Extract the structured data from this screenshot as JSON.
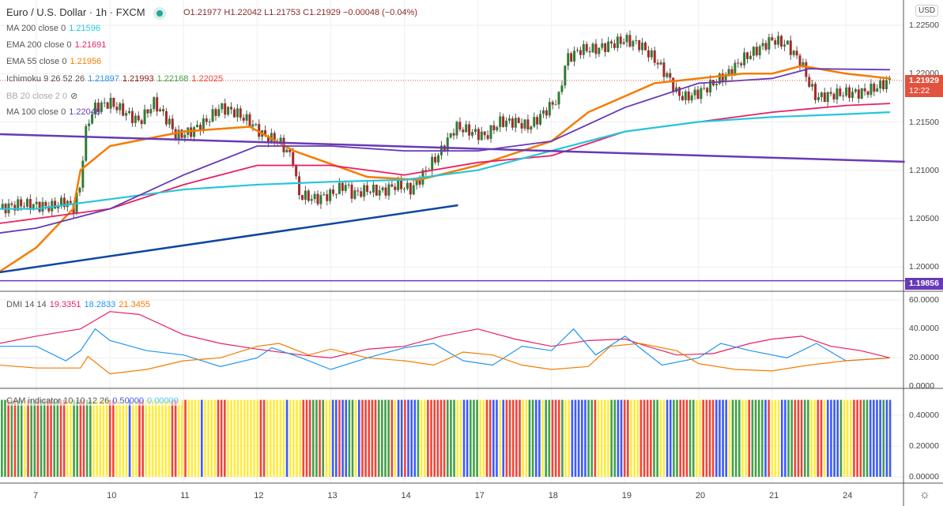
{
  "header": {
    "title": "Euro / U.S. Dollar · 1h · FXCM",
    "open": "O1.21977",
    "high": "H1.22042",
    "low": "L1.21753",
    "close": "C1.21929",
    "change": "−0.00048 (−0.04%)"
  },
  "legend": [
    {
      "label": "MA 200 close 0",
      "value": "1.21596",
      "color": "#26c6da"
    },
    {
      "label": "EMA 200 close 0",
      "value": "1.21691",
      "color": "#e91e63"
    },
    {
      "label": "EMA 55 close 0",
      "value": "1.21956",
      "color": "#f57c00"
    },
    {
      "label": "Ichimoku 9 26 52 26",
      "values": [
        "1.21897",
        "1.21993",
        "1.22168",
        "1.22025"
      ],
      "colors": [
        "#2196f3",
        "#8b1a1a",
        "#43a047",
        "#f44336"
      ]
    },
    {
      "label": "BB 20 close 2 0",
      "hidden": true
    },
    {
      "label": "MA 100 close 0",
      "value": "1.22048",
      "color": "#673ab7"
    }
  ],
  "dmi": {
    "label": "DMI 14 14",
    "values": [
      "19.3351",
      "18.2833",
      "21.3455"
    ]
  },
  "cam": {
    "label": "CAM indicator 10 10 12 26",
    "values": [
      "0.50000",
      "0.00000"
    ]
  },
  "currency": "USD",
  "price_tag": {
    "price": "1.21929",
    "countdown": "12:22"
  },
  "hline_tag": "1.19856",
  "price_axis": [
    "1.22500",
    "1.22000",
    "1.21500",
    "1.21000",
    "1.20500",
    "1.20000"
  ],
  "dmi_axis": [
    "60.0000",
    "40.0000",
    "20.0000",
    "0.0000"
  ],
  "cam_axis": [
    "0.40000",
    "0.20000",
    "0.00000"
  ],
  "chart_data": {
    "type": "line",
    "x_tick_labels": [
      "7",
      "10",
      "11",
      "12",
      "13",
      "14",
      "17",
      "18",
      "19",
      "20",
      "21",
      "24"
    ],
    "price_path": [
      [
        -0.5,
        1.206
      ],
      [
        -0.2,
        1.2065
      ],
      [
        0.2,
        1.2062
      ],
      [
        0.4,
        1.2068
      ],
      [
        0.5,
        1.206
      ],
      [
        0.6,
        1.2085
      ],
      [
        0.65,
        1.213
      ],
      [
        0.7,
        1.215
      ],
      [
        0.8,
        1.2165
      ],
      [
        1.0,
        1.217
      ],
      [
        1.2,
        1.216
      ],
      [
        1.4,
        1.215
      ],
      [
        1.6,
        1.217
      ],
      [
        1.8,
        1.215
      ],
      [
        1.9,
        1.2135
      ],
      [
        2.1,
        1.214
      ],
      [
        2.3,
        1.215
      ],
      [
        2.5,
        1.2165
      ],
      [
        2.7,
        1.216
      ],
      [
        2.9,
        1.215
      ],
      [
        3.1,
        1.2135
      ],
      [
        3.3,
        1.213
      ],
      [
        3.5,
        1.211
      ],
      [
        3.55,
        1.2075
      ],
      [
        3.8,
        1.207
      ],
      [
        4.0,
        1.2075
      ],
      [
        4.2,
        1.2085
      ],
      [
        4.3,
        1.2075
      ],
      [
        4.5,
        1.208
      ],
      [
        4.7,
        1.2078
      ],
      [
        4.9,
        1.2085
      ],
      [
        5.1,
        1.208
      ],
      [
        5.3,
        1.21
      ],
      [
        5.5,
        1.212
      ],
      [
        5.7,
        1.2145
      ],
      [
        5.9,
        1.214
      ],
      [
        6.1,
        1.2135
      ],
      [
        6.3,
        1.215
      ],
      [
        6.5,
        1.215
      ],
      [
        6.7,
        1.2145
      ],
      [
        6.9,
        1.216
      ],
      [
        7.1,
        1.2175
      ],
      [
        7.2,
        1.2215
      ],
      [
        7.4,
        1.2225
      ],
      [
        7.6,
        1.2225
      ],
      [
        7.8,
        1.223
      ],
      [
        8.0,
        1.2235
      ],
      [
        8.2,
        1.223
      ],
      [
        8.4,
        1.2215
      ],
      [
        8.6,
        1.2195
      ],
      [
        8.7,
        1.218
      ],
      [
        8.8,
        1.2175
      ],
      [
        9.0,
        1.218
      ],
      [
        9.2,
        1.219
      ],
      [
        9.4,
        1.22
      ],
      [
        9.6,
        1.2215
      ],
      [
        9.8,
        1.2225
      ],
      [
        10.0,
        1.2235
      ],
      [
        10.2,
        1.223
      ],
      [
        10.4,
        1.221
      ],
      [
        10.5,
        1.219
      ],
      [
        10.6,
        1.2175
      ],
      [
        10.8,
        1.2178
      ],
      [
        11.0,
        1.218
      ],
      [
        11.2,
        1.218
      ],
      [
        11.4,
        1.2185
      ],
      [
        11.6,
        1.2193
      ]
    ],
    "series": [
      {
        "name": "EMA 55",
        "color": "#f57c00",
        "width": 2.5,
        "points": [
          [
            -0.5,
            1.1995
          ],
          [
            0,
            1.202
          ],
          [
            0.5,
            1.206
          ],
          [
            0.6,
            1.21
          ],
          [
            1,
            1.2125
          ],
          [
            2,
            1.214
          ],
          [
            2.9,
            1.2145
          ],
          [
            3.5,
            1.212
          ],
          [
            4.5,
            1.2093
          ],
          [
            5.2,
            1.209
          ],
          [
            6,
            1.2105
          ],
          [
            7,
            1.213
          ],
          [
            7.5,
            1.216
          ],
          [
            8.4,
            1.219
          ],
          [
            9,
            1.2195
          ],
          [
            9.6,
            1.22
          ],
          [
            10,
            1.22
          ],
          [
            10.4,
            1.2208
          ],
          [
            11,
            1.22
          ],
          [
            11.6,
            1.2195
          ]
        ]
      },
      {
        "name": "EMA 200",
        "color": "#e91e63",
        "width": 1.8,
        "points": [
          [
            -0.5,
            1.2045
          ],
          [
            1,
            1.206
          ],
          [
            2,
            1.2085
          ],
          [
            3,
            1.2105
          ],
          [
            4,
            1.2105
          ],
          [
            5,
            1.2095
          ],
          [
            6,
            1.2108
          ],
          [
            7,
            1.2115
          ],
          [
            8,
            1.214
          ],
          [
            9,
            1.215
          ],
          [
            10,
            1.216
          ],
          [
            11,
            1.2167
          ],
          [
            11.6,
            1.2169
          ]
        ]
      },
      {
        "name": "MA 200",
        "color": "#26c6da",
        "width": 2.2,
        "points": [
          [
            -0.5,
            1.206
          ],
          [
            0,
            1.206
          ],
          [
            1,
            1.207
          ],
          [
            2,
            1.208
          ],
          [
            3,
            1.2085
          ],
          [
            4,
            1.2088
          ],
          [
            5,
            1.209
          ],
          [
            6,
            1.21
          ],
          [
            7,
            1.212
          ],
          [
            8,
            1.214
          ],
          [
            9,
            1.215
          ],
          [
            10,
            1.2155
          ],
          [
            11,
            1.2158
          ],
          [
            11.6,
            1.216
          ]
        ]
      },
      {
        "name": "MA 100",
        "color": "#673ab7",
        "width": 1.8,
        "points": [
          [
            -0.5,
            1.2035
          ],
          [
            0,
            1.204
          ],
          [
            1,
            1.206
          ],
          [
            2,
            1.2095
          ],
          [
            3,
            1.2125
          ],
          [
            4,
            1.2125
          ],
          [
            5,
            1.212
          ],
          [
            6,
            1.212
          ],
          [
            7,
            1.213
          ],
          [
            8,
            1.2165
          ],
          [
            9,
            1.219
          ],
          [
            10,
            1.2195
          ],
          [
            10.5,
            1.2205
          ],
          [
            11.6,
            1.2204
          ]
        ]
      },
      {
        "name": "Resistance trendline",
        "color": "#673ab7",
        "width": 2.5,
        "points": [
          [
            -0.5,
            1.21373
          ],
          [
            11.8,
            1.21087
          ]
        ]
      },
      {
        "name": "Support trendline",
        "color": "#0d47a1",
        "width": 2.5,
        "points": [
          [
            -0.5,
            1.19943
          ],
          [
            5.73,
            1.20637
          ]
        ]
      },
      {
        "name": "Horizontal level",
        "color": "#673ab7",
        "width": 1.5,
        "points": [
          [
            -0.5,
            1.19856
          ],
          [
            11.8,
            1.19856
          ]
        ]
      }
    ],
    "dmi_series": [
      {
        "name": "ADX",
        "color": "#e91e63",
        "points": [
          [
            -0.5,
            30
          ],
          [
            0,
            35
          ],
          [
            0.6,
            40
          ],
          [
            1,
            52
          ],
          [
            1.4,
            50
          ],
          [
            2,
            36
          ],
          [
            2.5,
            30
          ],
          [
            3,
            26
          ],
          [
            3.6,
            22
          ],
          [
            4,
            20
          ],
          [
            4.5,
            26
          ],
          [
            5,
            28
          ],
          [
            5.5,
            35
          ],
          [
            6,
            40
          ],
          [
            6.5,
            33
          ],
          [
            7,
            28
          ],
          [
            7.5,
            32
          ],
          [
            8,
            33
          ],
          [
            8.3,
            28
          ],
          [
            8.7,
            22
          ],
          [
            9.2,
            23
          ],
          [
            9.7,
            30
          ],
          [
            10,
            33
          ],
          [
            10.4,
            35
          ],
          [
            10.8,
            28
          ],
          [
            11.2,
            25
          ],
          [
            11.6,
            20
          ]
        ]
      },
      {
        "name": "+DI",
        "color": "#2196f3",
        "points": [
          [
            -0.5,
            28
          ],
          [
            0,
            28
          ],
          [
            0.4,
            18
          ],
          [
            0.6,
            25
          ],
          [
            0.8,
            40
          ],
          [
            1,
            32
          ],
          [
            1.5,
            25
          ],
          [
            2,
            22
          ],
          [
            2.5,
            14
          ],
          [
            3,
            20
          ],
          [
            3.2,
            27
          ],
          [
            3.6,
            20
          ],
          [
            4,
            12
          ],
          [
            4.5,
            20
          ],
          [
            5,
            27
          ],
          [
            5.4,
            30
          ],
          [
            5.8,
            18
          ],
          [
            6.2,
            15
          ],
          [
            6.6,
            28
          ],
          [
            7,
            25
          ],
          [
            7.3,
            40
          ],
          [
            7.6,
            22
          ],
          [
            8,
            35
          ],
          [
            8.5,
            15
          ],
          [
            9,
            20
          ],
          [
            9.3,
            30
          ],
          [
            9.7,
            25
          ],
          [
            10.2,
            20
          ],
          [
            10.6,
            30
          ],
          [
            11,
            18
          ],
          [
            11.6,
            20
          ]
        ]
      },
      {
        "name": "-DI",
        "color": "#f57c00",
        "points": [
          [
            -0.5,
            15
          ],
          [
            0,
            13
          ],
          [
            0.6,
            13
          ],
          [
            0.7,
            21
          ],
          [
            1,
            9
          ],
          [
            1.5,
            12
          ],
          [
            2,
            18
          ],
          [
            2.5,
            20
          ],
          [
            3,
            28
          ],
          [
            3.3,
            30
          ],
          [
            3.7,
            22
          ],
          [
            4,
            26
          ],
          [
            4.5,
            20
          ],
          [
            5,
            18
          ],
          [
            5.4,
            15
          ],
          [
            5.8,
            24
          ],
          [
            6.2,
            22
          ],
          [
            6.6,
            15
          ],
          [
            7,
            12
          ],
          [
            7.5,
            14
          ],
          [
            7.8,
            28
          ],
          [
            8.2,
            30
          ],
          [
            8.7,
            25
          ],
          [
            9,
            16
          ],
          [
            9.5,
            12
          ],
          [
            10,
            11
          ],
          [
            10.5,
            15
          ],
          [
            11,
            18
          ],
          [
            11.6,
            20
          ]
        ]
      }
    ],
    "cam_value": 0.5,
    "cam_colors": {
      "G": "#43a047",
      "R": "#f44336",
      "Y": "#ffeb3b",
      "B": "#3d5afe"
    },
    "cam_runs": "GGRGRGGYRGGRGGRRGGRRYYGGRRGGYYYYYRRYYYYBYYRRYYYYYYYYRRYYRYYYYBYYYYRRRYYYYYYYYYYRRYYYYYYBYYYYRRRGGRGYYBBRBBGGYBRRRRRGGGGRYBBRBBBGYYRRRRRRGGGYYBBGGGYYRRBBYBRRRRRYYGGBBYGGRRRGYYBBBBBGGRYYYYGGBBRRYYYRRRRGGYYBBGGRRRGGYYRRRRBBBBYGGGYYRGGGGBRYYYBBGGRRRGGYYRRYBBBBGYYYRRRGGBBBBGBB",
    "dmi_ylim": [
      0,
      60
    ],
    "cam_ylim": [
      0,
      0.5
    ],
    "ylim": [
      1.1975,
      1.2265
    ]
  }
}
